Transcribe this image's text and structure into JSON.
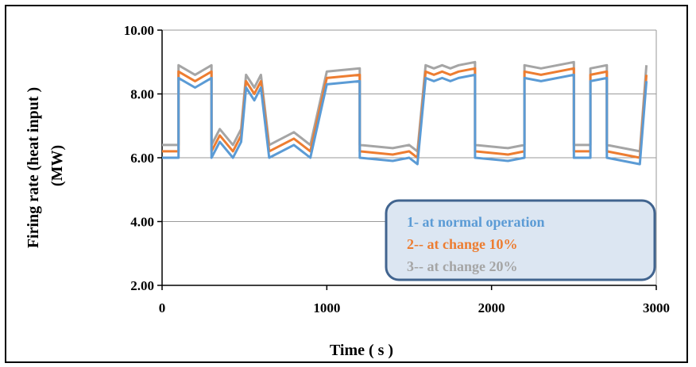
{
  "chart_data": {
    "type": "line",
    "title": "",
    "xlabel": "Time ( s )",
    "ylabel_line1": "Firing rate (heat input )",
    "ylabel_line2": "(MW)",
    "xlim": [
      0,
      3000
    ],
    "ylim": [
      2,
      10
    ],
    "x_ticks": [
      0,
      1000,
      2000,
      3000
    ],
    "x_tick_labels": [
      "0",
      "1000",
      "2000",
      "3000"
    ],
    "y_ticks": [
      2,
      4,
      6,
      8,
      10
    ],
    "y_tick_labels": [
      "2.00",
      "4.00",
      "6.00",
      "8.00",
      "10.00"
    ],
    "grid": "horizontal",
    "legend_position": "bottom-right",
    "series": [
      {
        "name": "1- at normal operation",
        "color": "#5b9bd5",
        "points": [
          [
            0,
            6.0
          ],
          [
            100,
            6.0
          ],
          [
            100,
            8.5
          ],
          [
            200,
            8.2
          ],
          [
            300,
            8.5
          ],
          [
            300,
            6.0
          ],
          [
            350,
            6.5
          ],
          [
            430,
            6.0
          ],
          [
            480,
            6.5
          ],
          [
            510,
            8.2
          ],
          [
            560,
            7.8
          ],
          [
            600,
            8.2
          ],
          [
            650,
            6.0
          ],
          [
            800,
            6.4
          ],
          [
            900,
            6.0
          ],
          [
            1000,
            8.3
          ],
          [
            1200,
            8.4
          ],
          [
            1200,
            6.0
          ],
          [
            1400,
            5.9
          ],
          [
            1500,
            6.0
          ],
          [
            1550,
            5.8
          ],
          [
            1600,
            8.5
          ],
          [
            1650,
            8.4
          ],
          [
            1700,
            8.5
          ],
          [
            1750,
            8.4
          ],
          [
            1800,
            8.5
          ],
          [
            1900,
            8.6
          ],
          [
            1900,
            6.0
          ],
          [
            2100,
            5.9
          ],
          [
            2200,
            6.0
          ],
          [
            2200,
            8.5
          ],
          [
            2300,
            8.4
          ],
          [
            2500,
            8.6
          ],
          [
            2500,
            6.0
          ],
          [
            2600,
            6.0
          ],
          [
            2600,
            8.4
          ],
          [
            2700,
            8.5
          ],
          [
            2700,
            6.0
          ],
          [
            2900,
            5.8
          ],
          [
            2940,
            8.4
          ]
        ]
      },
      {
        "name": "2-- at change 10%",
        "color": "#ed7d31",
        "points": [
          [
            0,
            6.2
          ],
          [
            100,
            6.2
          ],
          [
            100,
            8.7
          ],
          [
            200,
            8.4
          ],
          [
            300,
            8.7
          ],
          [
            300,
            6.2
          ],
          [
            350,
            6.7
          ],
          [
            430,
            6.2
          ],
          [
            480,
            6.7
          ],
          [
            510,
            8.4
          ],
          [
            560,
            8.0
          ],
          [
            600,
            8.4
          ],
          [
            650,
            6.2
          ],
          [
            800,
            6.6
          ],
          [
            900,
            6.2
          ],
          [
            1000,
            8.5
          ],
          [
            1200,
            8.6
          ],
          [
            1200,
            6.2
          ],
          [
            1400,
            6.1
          ],
          [
            1500,
            6.2
          ],
          [
            1550,
            6.0
          ],
          [
            1600,
            8.7
          ],
          [
            1650,
            8.6
          ],
          [
            1700,
            8.7
          ],
          [
            1750,
            8.6
          ],
          [
            1800,
            8.7
          ],
          [
            1900,
            8.8
          ],
          [
            1900,
            6.2
          ],
          [
            2100,
            6.1
          ],
          [
            2200,
            6.2
          ],
          [
            2200,
            8.7
          ],
          [
            2300,
            8.6
          ],
          [
            2500,
            8.8
          ],
          [
            2500,
            6.2
          ],
          [
            2600,
            6.2
          ],
          [
            2600,
            8.6
          ],
          [
            2700,
            8.7
          ],
          [
            2700,
            6.2
          ],
          [
            2900,
            6.0
          ],
          [
            2940,
            8.6
          ]
        ]
      },
      {
        "name": "3-- at change 20%",
        "color": "#a5a5a5",
        "points": [
          [
            0,
            6.4
          ],
          [
            100,
            6.4
          ],
          [
            100,
            8.9
          ],
          [
            200,
            8.6
          ],
          [
            300,
            8.9
          ],
          [
            300,
            6.4
          ],
          [
            350,
            6.9
          ],
          [
            430,
            6.4
          ],
          [
            480,
            6.9
          ],
          [
            510,
            8.6
          ],
          [
            560,
            8.2
          ],
          [
            600,
            8.6
          ],
          [
            650,
            6.4
          ],
          [
            800,
            6.8
          ],
          [
            900,
            6.4
          ],
          [
            1000,
            8.7
          ],
          [
            1200,
            8.8
          ],
          [
            1200,
            6.4
          ],
          [
            1400,
            6.3
          ],
          [
            1500,
            6.4
          ],
          [
            1550,
            6.2
          ],
          [
            1600,
            8.9
          ],
          [
            1650,
            8.8
          ],
          [
            1700,
            8.9
          ],
          [
            1750,
            8.8
          ],
          [
            1800,
            8.9
          ],
          [
            1900,
            9.0
          ],
          [
            1900,
            6.4
          ],
          [
            2100,
            6.3
          ],
          [
            2200,
            6.4
          ],
          [
            2200,
            8.9
          ],
          [
            2300,
            8.8
          ],
          [
            2500,
            9.0
          ],
          [
            2500,
            6.4
          ],
          [
            2600,
            6.4
          ],
          [
            2600,
            8.8
          ],
          [
            2700,
            8.9
          ],
          [
            2700,
            6.4
          ],
          [
            2900,
            6.2
          ],
          [
            2940,
            8.9
          ]
        ]
      }
    ]
  },
  "legend": {
    "border_color": "#41648f",
    "fill_color": "#dce6f2"
  }
}
